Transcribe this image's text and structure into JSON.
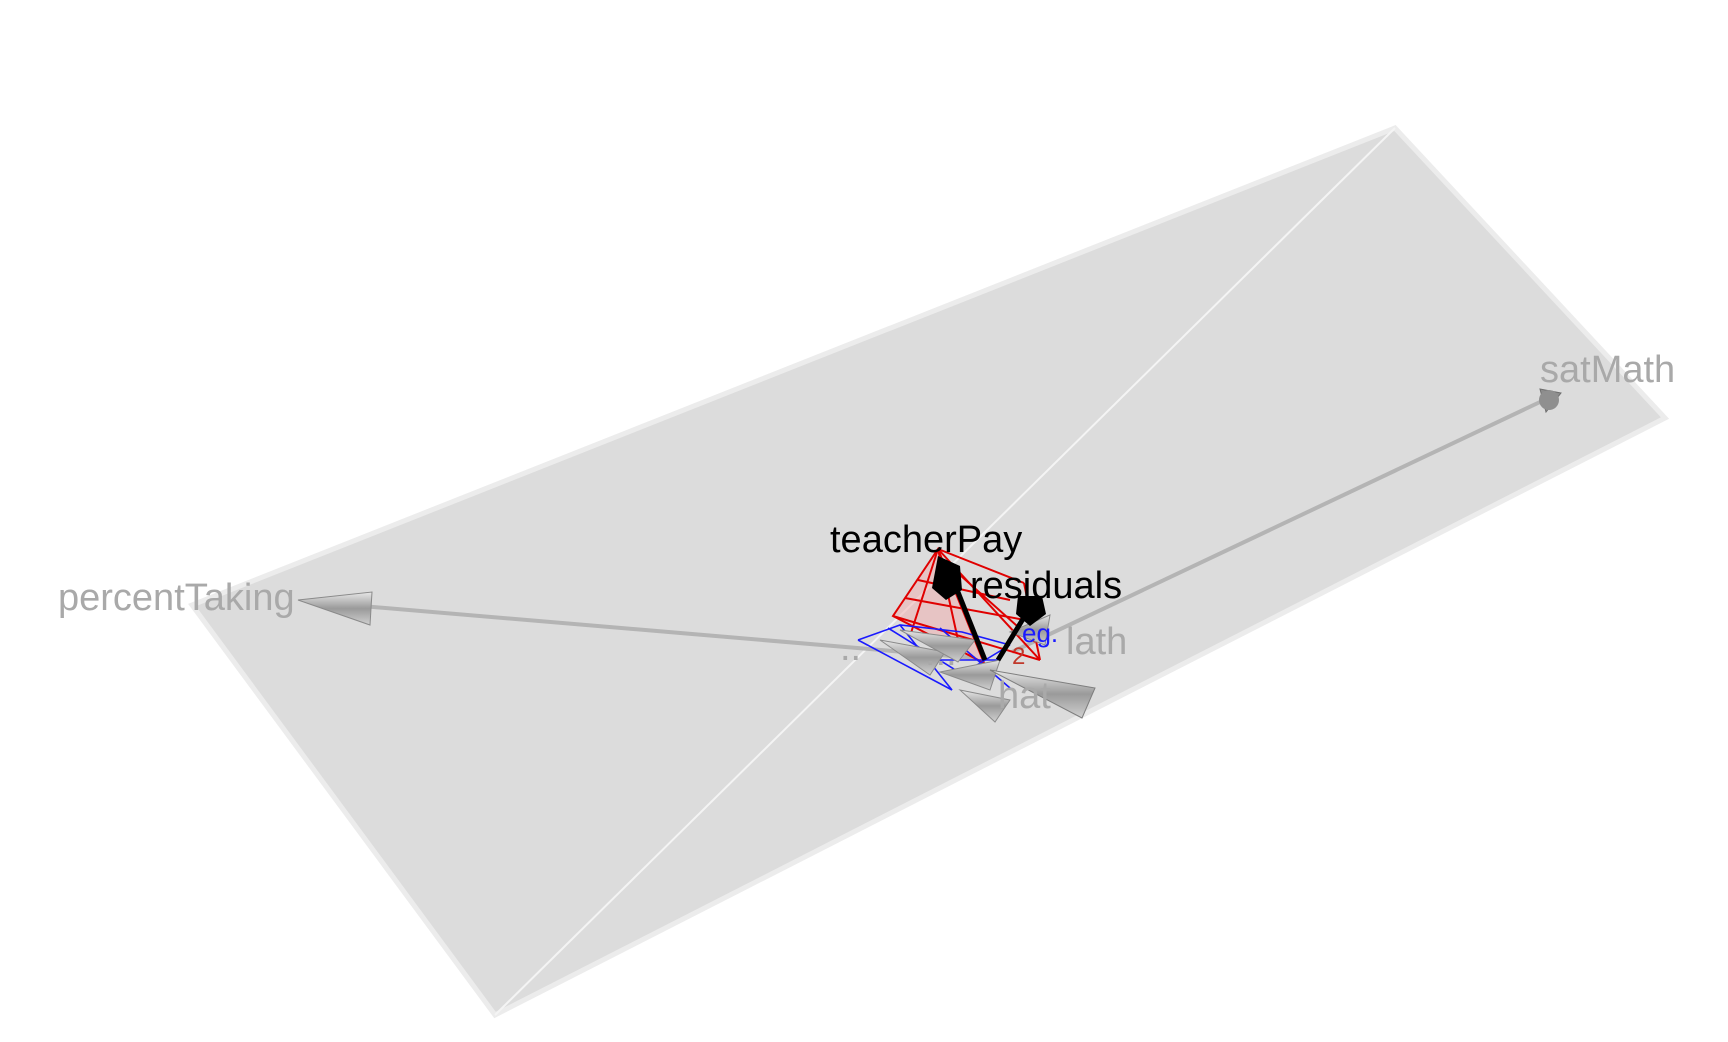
{
  "vectors": {
    "percent_taking": "percentTaking",
    "sat_math": "satMath",
    "teacher_pay": "teacherPay",
    "residuals": "residuals"
  },
  "clutter_labels": {
    "label_1": "..",
    "label_2": "...",
    "label_3": "eg.",
    "label_4": "lath",
    "label_5": "hat",
    "label_6": "2"
  },
  "colors": {
    "plane": "#dcdcdc",
    "plane_edge": "#ececec",
    "grey_label": "#a9a9a9",
    "grey_vector": "#b4b4b4",
    "black_vector": "#000000",
    "red_lines": "#e00000",
    "blue_lines": "#1a1aff"
  }
}
